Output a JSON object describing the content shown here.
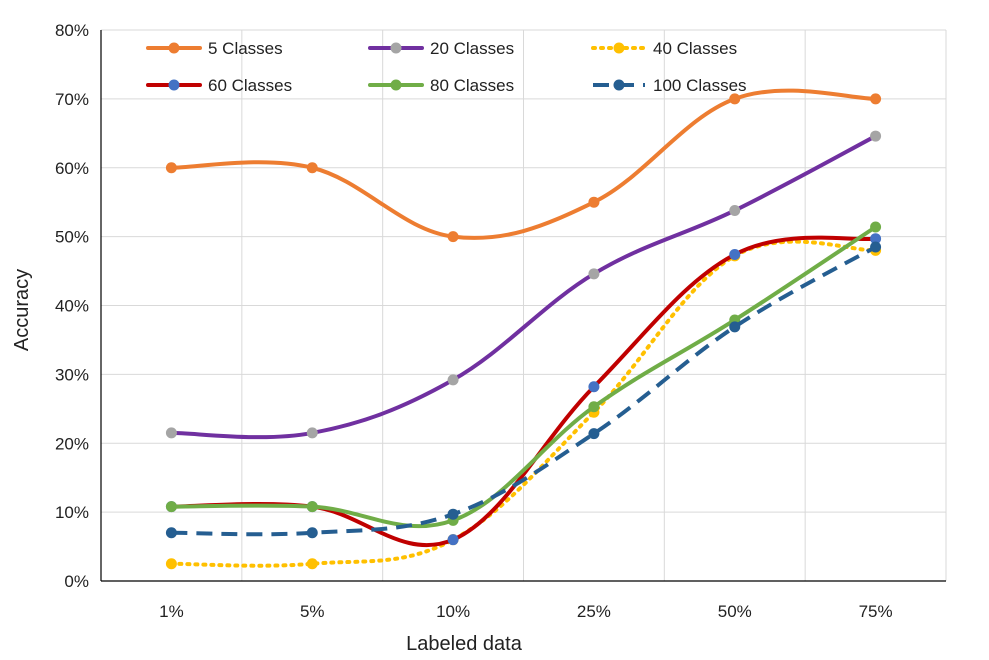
{
  "chart_data": {
    "type": "line",
    "title": "",
    "xlabel": "Labeled data",
    "ylabel": "Accuracy",
    "categories": [
      "1%",
      "5%",
      "10%",
      "25%",
      "50%",
      "75%"
    ],
    "ylim": [
      0,
      80
    ],
    "yticks": [
      0,
      10,
      20,
      30,
      40,
      50,
      60,
      70,
      80
    ],
    "ytick_labels": [
      "0%",
      "10%",
      "20%",
      "30%",
      "40%",
      "50%",
      "60%",
      "70%",
      "80%"
    ],
    "grid": true,
    "legend_position": "top",
    "series": [
      {
        "name": "5 Classes",
        "color": "#ED7D31",
        "marker": "#ED7D31",
        "dash": "solid",
        "values": [
          60,
          60,
          50,
          55,
          70,
          70
        ]
      },
      {
        "name": "20 Classes",
        "color": "#7030A0",
        "marker": "#A5A5A5",
        "dash": "solid",
        "values": [
          21.5,
          21.5,
          29.2,
          44.6,
          53.8,
          64.6
        ]
      },
      {
        "name": "40 Classes",
        "color": "#FFC000",
        "marker": "#FFC000",
        "dash": "dotted",
        "values": [
          2.5,
          2.5,
          6.0,
          24.5,
          47.2,
          48.0
        ]
      },
      {
        "name": "60 Classes",
        "color": "#C00000",
        "marker": "#4472C4",
        "dash": "solid",
        "values": [
          10.8,
          10.8,
          6.0,
          28.2,
          47.4,
          49.7
        ]
      },
      {
        "name": "80 Classes",
        "color": "#70AD47",
        "marker": "#70AD47",
        "dash": "solid",
        "values": [
          10.8,
          10.8,
          8.8,
          25.3,
          37.9,
          51.4
        ]
      },
      {
        "name": "100 Classes",
        "color": "#255E91",
        "marker": "#255E91",
        "dash": "dashed",
        "values": [
          7.0,
          7.0,
          9.7,
          21.4,
          36.9,
          48.5
        ]
      }
    ]
  }
}
